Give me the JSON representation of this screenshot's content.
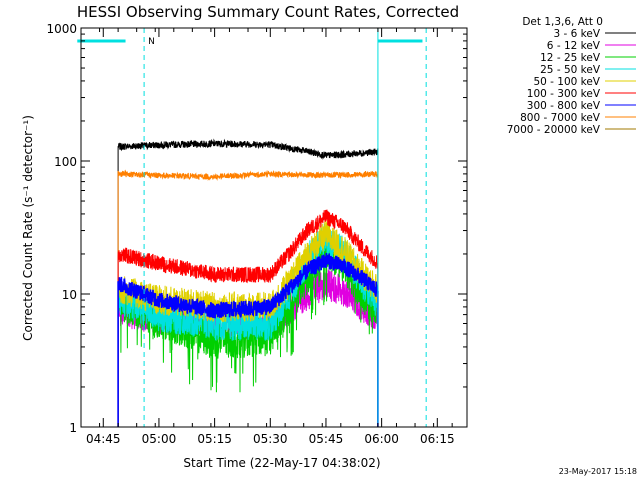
{
  "chart_data": {
    "type": "line",
    "title": "HESSI Observing Summary Count Rates, Corrected",
    "xlabel": "Start Time (22-May-17 04:38:02)",
    "ylabel": "Corrected Count Rate (s⁻¹ detector⁻¹)",
    "yscale": "log",
    "ylim": [
      1,
      1000
    ],
    "xlim_minutes": [
      -1.2,
      19.6
    ],
    "x_ticks": [
      "04:45",
      "05:00",
      "05:15",
      "05:30",
      "05:45",
      "06:00",
      "06:15"
    ],
    "y_ticks": [
      "1",
      "10",
      "100",
      "1000"
    ],
    "legend_header": "Det 1,3,6, Att 0",
    "legend_position": "top-right",
    "timestamp": "23-May-2017 15:18",
    "night_marker": "N",
    "observing_window": [
      "04:49",
      "05:59"
    ],
    "attenuator_bars": [
      [
        "04:38",
        "04:51"
      ],
      [
        "05:59",
        "06:11"
      ]
    ],
    "series": [
      {
        "name": "3 - 6 keV",
        "color": "#000000",
        "x": [
          "04:49",
          "05:00",
          "05:15",
          "05:30",
          "05:40",
          "05:45",
          "05:50",
          "06:00"
        ],
        "values": [
          128,
          132,
          135,
          133,
          118,
          110,
          112,
          118
        ]
      },
      {
        "name": "6 - 12 keV",
        "color": "#e000e0",
        "x": [
          "04:49",
          "05:00",
          "05:15",
          "05:30",
          "05:35",
          "05:40",
          "05:45",
          "05:50",
          "05:55",
          "06:00"
        ],
        "values": [
          7.5,
          6.5,
          6.2,
          6.0,
          7.5,
          10,
          12,
          10.5,
          8,
          6.5
        ]
      },
      {
        "name": "12 - 25 keV",
        "color": "#00d000",
        "x": [
          "04:49",
          "05:00",
          "05:15",
          "05:30",
          "05:35",
          "05:40",
          "05:45",
          "05:50",
          "05:55",
          "06:00"
        ],
        "values": [
          9,
          6.5,
          4.5,
          4.8,
          8,
          14,
          22,
          17,
          10,
          7
        ]
      },
      {
        "name": "25 - 50 keV",
        "color": "#00e0e0",
        "x": [
          "04:49",
          "05:00",
          "05:15",
          "05:30",
          "05:35",
          "05:40",
          "05:45",
          "05:50",
          "05:55",
          "06:00"
        ],
        "values": [
          9.5,
          7,
          6,
          6,
          10,
          18,
          26,
          20,
          12,
          8
        ]
      },
      {
        "name": "50 - 100 keV",
        "color": "#e0d000",
        "x": [
          "04:49",
          "05:00",
          "05:15",
          "05:30",
          "05:35",
          "05:40",
          "05:45",
          "05:50",
          "05:55",
          "06:00"
        ],
        "values": [
          11,
          9,
          8,
          8,
          12,
          20,
          28,
          21,
          14,
          10
        ]
      },
      {
        "name": "100 - 300 keV",
        "color": "#ff0000",
        "x": [
          "04:49",
          "05:00",
          "05:15",
          "05:30",
          "05:35",
          "05:40",
          "05:45",
          "05:50",
          "05:55",
          "06:00"
        ],
        "values": [
          20,
          17,
          14,
          14,
          20,
          30,
          38,
          32,
          22,
          16
        ]
      },
      {
        "name": "300 - 800 keV",
        "color": "#0000ff",
        "x": [
          "04:49",
          "05:00",
          "05:15",
          "05:30",
          "05:35",
          "05:40",
          "05:45",
          "05:50",
          "05:55",
          "06:00"
        ],
        "values": [
          12,
          9,
          7.5,
          8,
          11,
          15,
          18,
          16,
          13,
          10
        ]
      },
      {
        "name": "800 - 7000 keV",
        "color": "#ff8000",
        "x": [
          "04:49",
          "05:00",
          "05:15",
          "05:30",
          "05:45",
          "06:00"
        ],
        "values": [
          80,
          78,
          76,
          80,
          78,
          80
        ]
      },
      {
        "name": "7000 - 20000 keV",
        "color": "#a07800",
        "x": [],
        "values": []
      }
    ]
  }
}
